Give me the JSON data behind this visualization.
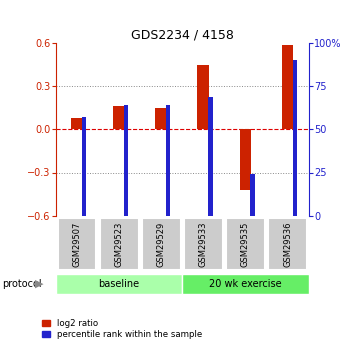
{
  "title": "GDS2234 / 4158",
  "samples": [
    "GSM29507",
    "GSM29523",
    "GSM29529",
    "GSM29533",
    "GSM29535",
    "GSM29536"
  ],
  "log2_ratio": [
    0.08,
    0.16,
    0.15,
    0.45,
    -0.42,
    0.59
  ],
  "percentile_rank": [
    57,
    64,
    64,
    69,
    24,
    90
  ],
  "groups": [
    {
      "label": "baseline",
      "start": 0,
      "end": 3,
      "color": "#aaffaa"
    },
    {
      "label": "20 wk exercise",
      "start": 3,
      "end": 6,
      "color": "#66ee66"
    }
  ],
  "bar_color_red": "#cc2200",
  "bar_color_blue": "#2222cc",
  "ylim_left": [
    -0.6,
    0.6
  ],
  "yticks_left": [
    -0.6,
    -0.3,
    0,
    0.3,
    0.6
  ],
  "yticks_right": [
    0,
    25,
    50,
    75,
    100
  ],
  "ytick_labels_right": [
    "0",
    "25",
    "50",
    "75",
    "100%"
  ],
  "hline_color": "#dd0000",
  "dotted_line_color": "#888888",
  "bg_color": "#ffffff",
  "protocol_label": "protocol",
  "legend_red_label": "log2 ratio",
  "legend_blue_label": "percentile rank within the sample",
  "red_bar_width": 0.28,
  "blue_bar_width": 0.1,
  "label_box_color": "#cccccc",
  "label_box_edge": "#ffffff"
}
